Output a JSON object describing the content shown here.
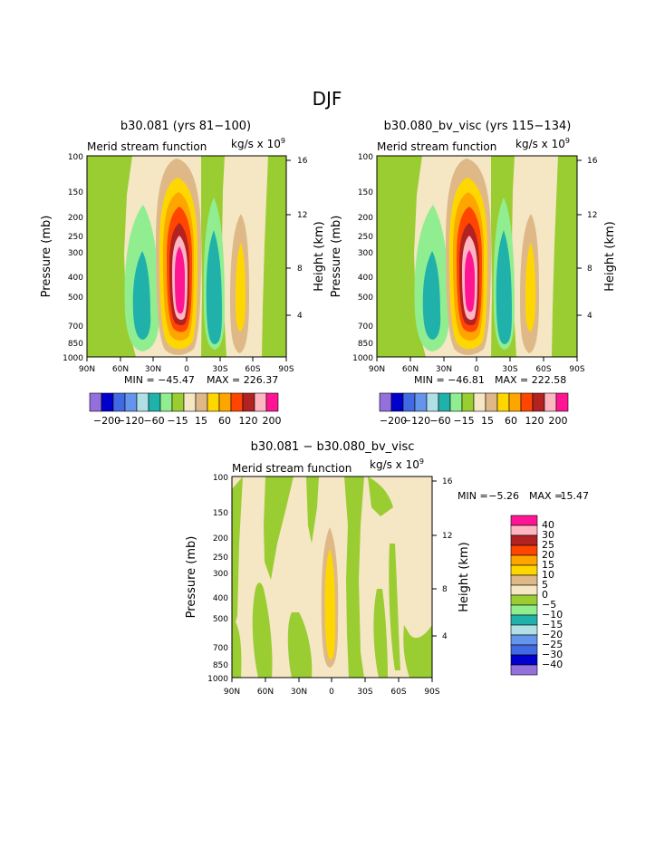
{
  "page_title": "DJF",
  "chart_data": [
    {
      "type": "contour",
      "title": "b30.081 (yrs 81−100)",
      "subtitle_left": "Merid stream function",
      "units_label": "kg/s x 10",
      "units_exp": "9",
      "ylabel": "Pressure (mb)",
      "ylabel_right": "Height (km)",
      "x_ticks": [
        "90N",
        "60N",
        "30N",
        "0",
        "30S",
        "60S",
        "90S"
      ],
      "y_ticks": [
        "100",
        "150",
        "200",
        "250",
        "300",
        "400",
        "500",
        "700",
        "850",
        "1000"
      ],
      "height_ticks": [
        "16",
        "12",
        "8",
        "4"
      ],
      "min_label": "MIN = −45.47",
      "max_label": "MAX = 226.37",
      "min": -45.47,
      "max": 226.37
    },
    {
      "type": "contour",
      "title": "b30.080_bv_visc (yrs 115−134)",
      "subtitle_left": "Merid stream function",
      "units_label": "kg/s x 10",
      "units_exp": "9",
      "ylabel": "Pressure (mb)",
      "ylabel_right": "Height (km)",
      "x_ticks": [
        "90N",
        "60N",
        "30N",
        "0",
        "30S",
        "60S",
        "90S"
      ],
      "y_ticks": [
        "100",
        "150",
        "200",
        "250",
        "300",
        "400",
        "500",
        "700",
        "850",
        "1000"
      ],
      "height_ticks": [
        "16",
        "12",
        "8",
        "4"
      ],
      "min_label": "MIN = −46.81",
      "max_label": "MAX = 222.58",
      "min": -46.81,
      "max": 222.58
    },
    {
      "type": "contour",
      "title": "b30.081 − b30.080_bv_visc",
      "subtitle_left": "Merid stream function",
      "units_label": "kg/s x 10",
      "units_exp": "9",
      "ylabel": "Pressure (mb)",
      "ylabel_right": "Height (km)",
      "x_ticks": [
        "90N",
        "60N",
        "30N",
        "0",
        "30S",
        "60S",
        "90S"
      ],
      "y_ticks": [
        "100",
        "150",
        "200",
        "250",
        "300",
        "400",
        "500",
        "700",
        "850",
        "1000"
      ],
      "height_ticks": [
        "16",
        "12",
        "8",
        "4"
      ],
      "min_label": "MIN =",
      "min_value": "−5.26",
      "max_label": "MAX =",
      "max_value": "15.47",
      "min": -5.26,
      "max": 15.47
    }
  ],
  "legend_top": {
    "colors": [
      "#9370db",
      "#0000cd",
      "#4169e1",
      "#6495ed",
      "#b0e0e6",
      "#20b2aa",
      "#90ee90",
      "#9acd32",
      "#f5e6c4",
      "#deb887",
      "#ffd700",
      "#ffa500",
      "#ff4500",
      "#b22222",
      "#ffb6c1",
      "#ff1493"
    ],
    "labels": [
      "−200",
      "−120",
      "−60",
      "−15",
      "15",
      "60",
      "120",
      "200"
    ]
  },
  "legend_diff": {
    "colors": [
      "#ff1493",
      "#ffb6c1",
      "#b22222",
      "#ff4500",
      "#ffa500",
      "#ffd700",
      "#deb887",
      "#f5e6c4",
      "#9acd32",
      "#90ee90",
      "#20b2aa",
      "#b0e0e6",
      "#6495ed",
      "#4169e1",
      "#0000cd",
      "#9370db"
    ],
    "labels": [
      "40",
      "30",
      "25",
      "20",
      "15",
      "10",
      "5",
      "0",
      "−5",
      "−10",
      "−15",
      "−20",
      "−25",
      "−30",
      "−40"
    ]
  }
}
